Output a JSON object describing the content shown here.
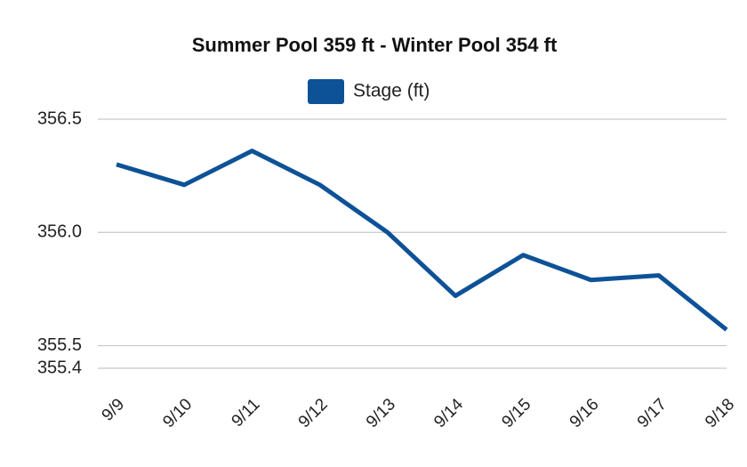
{
  "chart_data": {
    "type": "line",
    "title": "Summer Pool 359 ft  -  Winter Pool 354 ft",
    "categories": [
      "9/9",
      "9/10",
      "9/11",
      "9/12",
      "9/13",
      "9/14",
      "9/15",
      "9/16",
      "9/17",
      "9/18"
    ],
    "series": [
      {
        "name": "Stage (ft)",
        "color": "#0d5297",
        "values": [
          356.3,
          356.21,
          356.36,
          356.21,
          356.0,
          355.72,
          355.9,
          355.79,
          355.81,
          355.57
        ]
      }
    ],
    "ylim": [
      355.4,
      356.5
    ],
    "yticks": [
      355.4,
      355.5,
      {
        "value": 356,
        "label": "356.0"
      },
      356.5
    ],
    "grid": true,
    "legend": "top"
  }
}
